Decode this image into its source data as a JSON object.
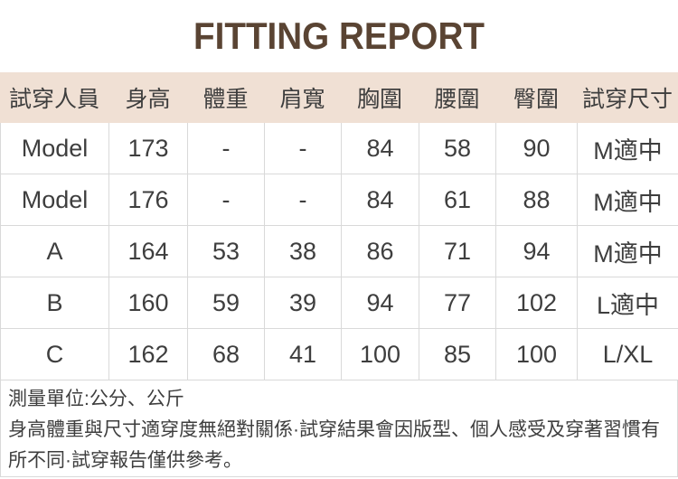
{
  "title": "FITTING REPORT",
  "table": {
    "headers": [
      "試穿人員",
      "身高",
      "體重",
      "肩寬",
      "胸圍",
      "腰圍",
      "臀圍",
      "試穿尺寸"
    ],
    "rows": [
      [
        "Model",
        "173",
        "-",
        "-",
        "84",
        "58",
        "90",
        "M適中"
      ],
      [
        "Model",
        "176",
        "-",
        "-",
        "84",
        "61",
        "88",
        "M適中"
      ],
      [
        "A",
        "164",
        "53",
        "38",
        "86",
        "71",
        "94",
        "M適中"
      ],
      [
        "B",
        "160",
        "59",
        "39",
        "94",
        "77",
        "102",
        "L適中"
      ],
      [
        "C",
        "162",
        "68",
        "41",
        "100",
        "85",
        "100",
        "L/XL"
      ]
    ]
  },
  "notes": {
    "unit_line": "測量單位:公分、公斤",
    "disclaimer": "身高體重與尺寸適穿度無絕對關係·試穿結果會因版型、個人感受及穿著習慣有所不同·試穿報告僅供參考。"
  },
  "colors": {
    "title_color": "#5a4433",
    "header_bg": "#f0e0d4",
    "text_color": "#3e3e3e",
    "border_color": "#d9d9d9"
  }
}
